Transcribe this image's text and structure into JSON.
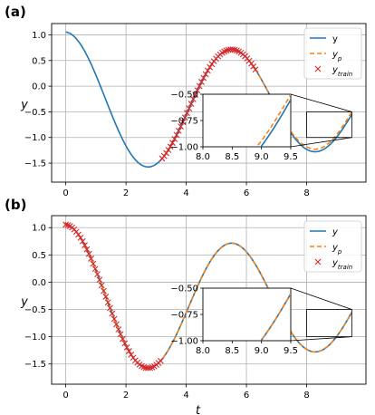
{
  "colors": {
    "true": "#1f77b4",
    "pred": "#ff7f0e",
    "train": "#d62728",
    "grid": "#b0b0b0"
  },
  "chart_data": [
    {
      "panel_label": "(a)",
      "type": "line",
      "xlabel": "",
      "ylabel": "y",
      "xlim": [
        -0.47,
        9.97
      ],
      "ylim": [
        -1.87,
        1.22
      ],
      "xticks": [
        0,
        2,
        4,
        6,
        8
      ],
      "xtick_labels": [
        "0",
        "2",
        "4",
        "6",
        "8"
      ],
      "yticks": [
        1.0,
        0.5,
        0.0,
        -0.5,
        -1.0,
        -1.5
      ],
      "ytick_labels": [
        "1.0",
        "0.5",
        "0.0",
        "−0.5",
        "−1.0",
        "−1.5"
      ],
      "grid": true,
      "legend": [
        "y",
        "y_p",
        "y_train"
      ],
      "legend_position": "upper right",
      "train_range": [
        3.2,
        6.3
      ],
      "train_count": 46,
      "inset": {
        "xlim": [
          8.0,
          9.5
        ],
        "ylim": [
          -1.0,
          -0.5
        ],
        "xticks": [
          8.0,
          8.5,
          9.0,
          9.5
        ],
        "xtick_labels": [
          "8.0",
          "8.5",
          "9.0",
          "9.5"
        ],
        "yticks": [
          -0.5,
          -0.75,
          -1.0
        ],
        "ytick_labels": [
          "−0.50",
          "−0.75",
          "−1.00"
        ],
        "pred_offset": 0.05
      }
    },
    {
      "panel_label": "(b)",
      "type": "line",
      "xlabel": "t",
      "ylabel": "y",
      "xlim": [
        -0.47,
        9.97
      ],
      "ylim": [
        -1.87,
        1.22
      ],
      "xticks": [
        0,
        2,
        4,
        6,
        8
      ],
      "xtick_labels": [
        "0",
        "2",
        "4",
        "6",
        "8"
      ],
      "yticks": [
        1.0,
        0.5,
        0.0,
        -0.5,
        -1.0,
        -1.5
      ],
      "ytick_labels": [
        "1.0",
        "0.5",
        "0.0",
        "−0.5",
        "−1.0",
        "−1.5"
      ],
      "grid": true,
      "legend": [
        "y",
        "y_p",
        "y_train"
      ],
      "legend_position": "upper right",
      "train_range": [
        0.0,
        3.15
      ],
      "train_count": 46,
      "inset": {
        "xlim": [
          8.0,
          9.5
        ],
        "ylim": [
          -1.0,
          -0.5
        ],
        "xticks": [
          8.0,
          8.5,
          9.0,
          9.5
        ],
        "xtick_labels": [
          "8.0",
          "8.5",
          "9.0",
          "9.5"
        ],
        "yticks": [
          -0.5,
          -0.75,
          -1.0
        ],
        "ytick_labels": [
          "−0.50",
          "−0.75",
          "−1.00"
        ],
        "pred_offset": 0.0
      }
    }
  ]
}
